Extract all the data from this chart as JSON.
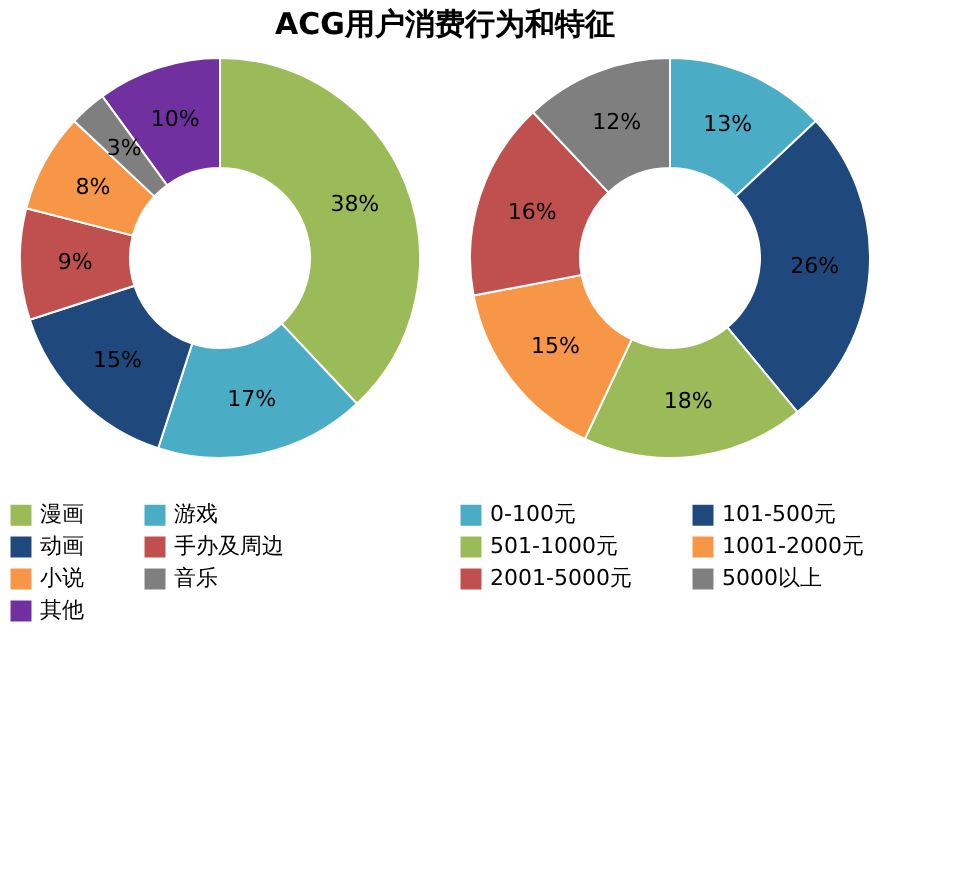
{
  "chart_data": [
    {
      "type": "donut",
      "title": "ACG用户消费行为和特征",
      "categories": [
        "漫画",
        "游戏",
        "动画",
        "手办及周边",
        "小说",
        "音乐",
        "其他"
      ],
      "values": [
        38,
        17,
        15,
        9,
        8,
        3,
        10
      ],
      "value_labels": [
        "38%",
        "17%",
        "15%",
        "9%",
        "8%",
        "3%",
        "10%"
      ],
      "colors": [
        "#9bbb59",
        "#4bacc6",
        "#1f497d",
        "#c0504d",
        "#f79646",
        "#7f7f7f",
        "#7030a0"
      ],
      "legend": "bottom"
    },
    {
      "type": "donut",
      "categories": [
        "0-100元",
        "101-500元",
        "501-1000元",
        "1001-2000元",
        "2001-5000元",
        "5000以上"
      ],
      "values": [
        13,
        26,
        18,
        15,
        16,
        12
      ],
      "value_labels": [
        "13%",
        "26%",
        "18%",
        "15%",
        "16%",
        "12%"
      ],
      "colors": [
        "#4bacc6",
        "#1f497d",
        "#9bbb59",
        "#f79646",
        "#c0504d",
        "#7f7f7f"
      ],
      "legend": "bottom"
    }
  ]
}
